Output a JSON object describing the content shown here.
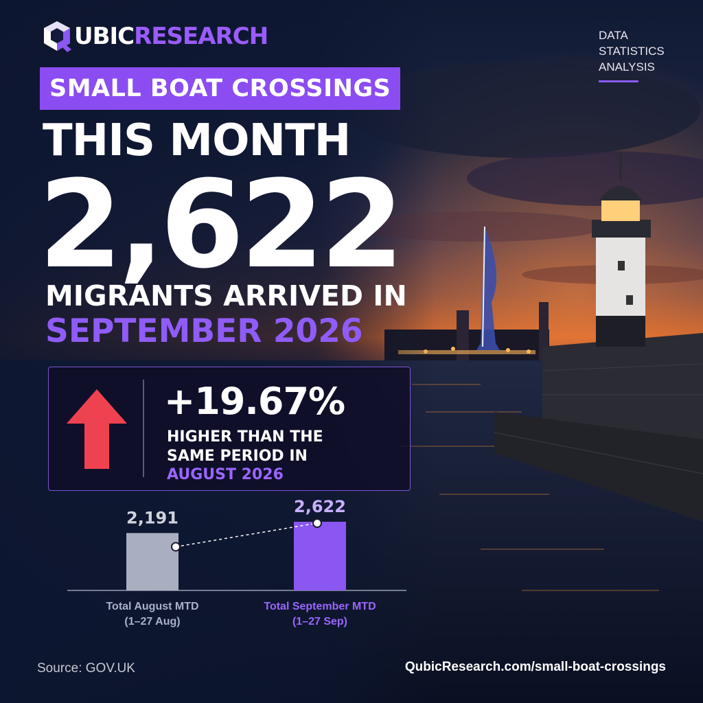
{
  "brand": {
    "logo_bold": "UBIC",
    "logo_accent": "RESEARCH",
    "logo_mark": "Q"
  },
  "tagline": [
    "DATA",
    "STATISTICS",
    "ANALYSIS"
  ],
  "headline": {
    "banner": "SMALL BOAT CROSSINGS",
    "period": "THIS MONTH",
    "big_number": "2,622",
    "subline": "MIGRANTS ARRIVED IN",
    "month_year": "SEPTEMBER 2026"
  },
  "change": {
    "percent": "+19.67%",
    "line1": "HIGHER THAN THE",
    "line2": "SAME PERIOD IN",
    "line3": "AUGUST 2026",
    "direction_icon": "arrow-up-icon",
    "direction_color": "#ef4250"
  },
  "chart_data": {
    "type": "bar",
    "categories": [
      [
        "Total August MTD",
        "(1–27 Aug)"
      ],
      [
        "Total September MTD",
        "(1–27 Sep)"
      ]
    ],
    "values": [
      2191,
      2622
    ],
    "value_labels": [
      "2,191",
      "2,622"
    ],
    "colors": [
      "#a9afc0",
      "#8a57f2"
    ],
    "label_colors": [
      "#a9b2c7",
      "#9a66ff"
    ],
    "trend_line": "dashed",
    "grid": false
  },
  "footer": {
    "source": "Source: GOV.UK",
    "url": "QubicResearch.com/small-boat-crossings"
  },
  "colors": {
    "accent": "#8b4df2",
    "accent_text": "#8f5cf7",
    "arrow": "#ef4250",
    "background": "#0d1630"
  }
}
